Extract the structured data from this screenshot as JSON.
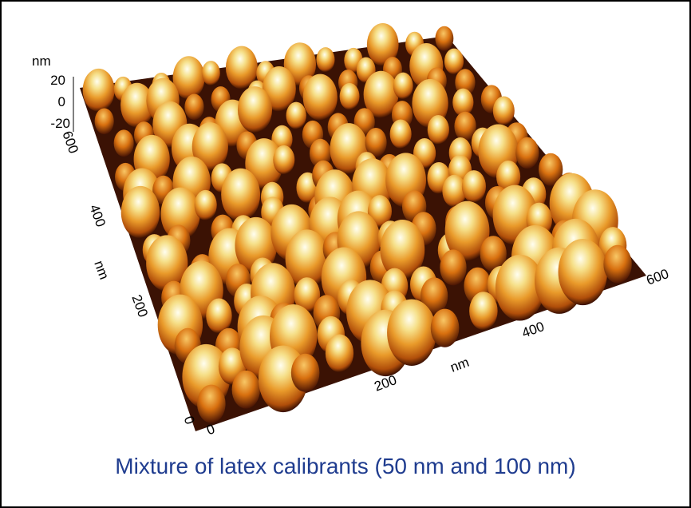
{
  "z_axis": {
    "unit": "nm",
    "ticks": [
      20,
      0,
      -20
    ]
  },
  "y_axis": {
    "unit": "nm",
    "ticks": [
      0,
      200,
      400,
      600
    ]
  },
  "x_axis": {
    "unit": "nm",
    "ticks": [
      0,
      200,
      400,
      600
    ]
  },
  "caption": "Mixture of latex calibrants (50 nm and 100 nm)"
}
